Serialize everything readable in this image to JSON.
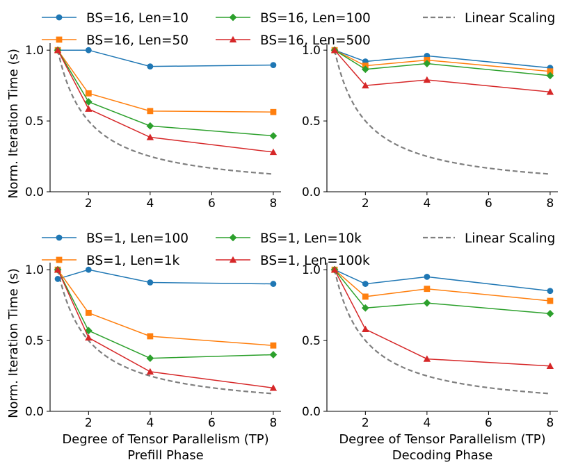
{
  "x_axis": {
    "label": "Degree of Tensor Parallelism (TP)",
    "ticks": [
      2,
      4,
      6,
      8
    ],
    "xlim": [
      0.75,
      8.25
    ]
  },
  "y_axis": {
    "label": "Norm. Iteration Time (s)",
    "ticks": [
      0.0,
      0.5,
      1.0
    ],
    "ylim": [
      0.0,
      1.05
    ]
  },
  "phase_labels": [
    "Prefill Phase",
    "Decoding Phase"
  ],
  "colors": {
    "blue": "#1f77b4",
    "orange": "#ff7f0e",
    "green": "#2ca02c",
    "red": "#d62728",
    "linear": "#7f7f7f"
  },
  "linear_scaling": {
    "name": "Linear Scaling",
    "formula": "1/TP"
  },
  "chart_data": [
    {
      "type": "line",
      "row": "top",
      "phase": "prefill",
      "x": [
        1,
        2,
        4,
        8
      ],
      "series": [
        {
          "name": "BS=16, Len=10",
          "values": [
            1.0,
            1.0,
            0.885,
            0.895
          ],
          "marker": "circle",
          "color": "blue"
        },
        {
          "name": "BS=16, Len=50",
          "values": [
            1.0,
            0.695,
            0.57,
            0.563
          ],
          "marker": "square",
          "color": "orange"
        },
        {
          "name": "BS=16, Len=100",
          "values": [
            1.0,
            0.635,
            0.465,
            0.395
          ],
          "marker": "diamond",
          "color": "green"
        },
        {
          "name": "BS=16, Len=500",
          "values": [
            1.0,
            0.585,
            0.385,
            0.28
          ],
          "marker": "triangle",
          "color": "red"
        }
      ]
    },
    {
      "type": "line",
      "row": "top",
      "phase": "decoding",
      "x": [
        1,
        2,
        4,
        8
      ],
      "series": [
        {
          "name": "BS=16, Len=10",
          "values": [
            1.0,
            0.92,
            0.96,
            0.875
          ],
          "marker": "circle",
          "color": "blue"
        },
        {
          "name": "BS=16, Len=50",
          "values": [
            1.0,
            0.89,
            0.93,
            0.85
          ],
          "marker": "square",
          "color": "orange"
        },
        {
          "name": "BS=16, Len=100",
          "values": [
            1.0,
            0.865,
            0.905,
            0.82
          ],
          "marker": "diamond",
          "color": "green"
        },
        {
          "name": "BS=16, Len=500",
          "values": [
            1.0,
            0.75,
            0.79,
            0.705
          ],
          "marker": "triangle",
          "color": "red"
        }
      ]
    },
    {
      "type": "line",
      "row": "bottom",
      "phase": "prefill",
      "x": [
        1,
        2,
        4,
        8
      ],
      "series": [
        {
          "name": "BS=1, Len=100",
          "values": [
            0.935,
            1.0,
            0.91,
            0.9
          ],
          "marker": "circle",
          "color": "blue"
        },
        {
          "name": "BS=1, Len=1k",
          "values": [
            1.0,
            0.695,
            0.53,
            0.465
          ],
          "marker": "square",
          "color": "orange"
        },
        {
          "name": "BS=1, Len=10k",
          "values": [
            1.0,
            0.57,
            0.375,
            0.4
          ],
          "marker": "diamond",
          "color": "green"
        },
        {
          "name": "BS=1, Len=100k",
          "values": [
            1.0,
            0.52,
            0.28,
            0.165
          ],
          "marker": "triangle",
          "color": "red"
        }
      ]
    },
    {
      "type": "line",
      "row": "bottom",
      "phase": "decoding",
      "x": [
        1,
        2,
        4,
        8
      ],
      "series": [
        {
          "name": "BS=1, Len=100",
          "values": [
            1.0,
            0.9,
            0.95,
            0.85
          ],
          "marker": "circle",
          "color": "blue"
        },
        {
          "name": "BS=1, Len=1k",
          "values": [
            1.0,
            0.81,
            0.865,
            0.78
          ],
          "marker": "square",
          "color": "orange"
        },
        {
          "name": "BS=1, Len=10k",
          "values": [
            1.0,
            0.73,
            0.765,
            0.69
          ],
          "marker": "diamond",
          "color": "green"
        },
        {
          "name": "BS=1, Len=100k",
          "values": [
            1.0,
            0.58,
            0.37,
            0.32
          ],
          "marker": "triangle",
          "color": "red"
        }
      ]
    }
  ]
}
